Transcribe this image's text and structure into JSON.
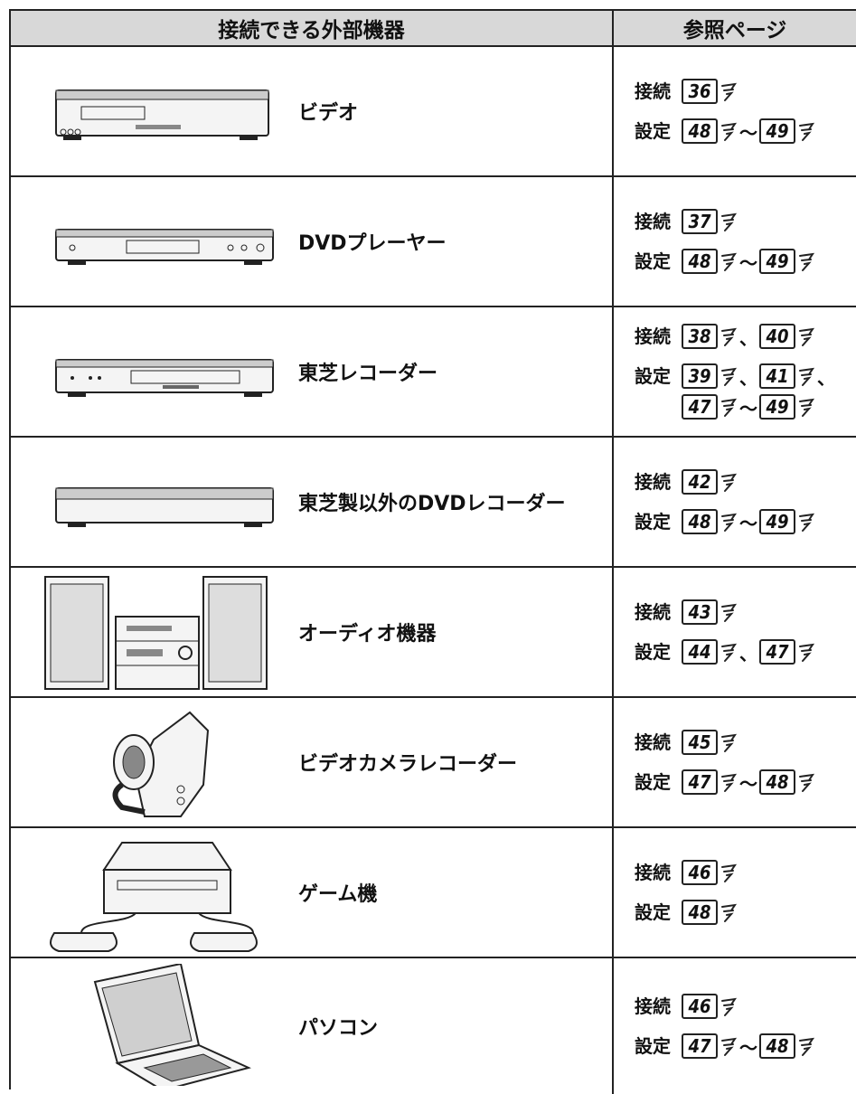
{
  "header": {
    "device": "接続できる外部機器",
    "reference": "参照ページ"
  },
  "rows": [
    {
      "name": "ビデオ",
      "refs": [
        {
          "label": "接続",
          "lines": [
            [
              "36"
            ]
          ]
        },
        {
          "label": "設定",
          "lines": [
            [
              "48",
              "～",
              "49"
            ]
          ]
        }
      ]
    },
    {
      "name": "DVDプレーヤー",
      "refs": [
        {
          "label": "接続",
          "lines": [
            [
              "37"
            ]
          ]
        },
        {
          "label": "設定",
          "lines": [
            [
              "48",
              "～",
              "49"
            ]
          ]
        }
      ]
    },
    {
      "name": "東芝レコーダー",
      "refs": [
        {
          "label": "接続",
          "lines": [
            [
              "38",
              "、",
              "40"
            ]
          ]
        },
        {
          "label": "設定",
          "lines": [
            [
              "39",
              "、",
              "41",
              "、"
            ],
            [
              "47",
              "～",
              "49"
            ]
          ]
        }
      ]
    },
    {
      "name": "東芝製以外のDVDレコーダー",
      "refs": [
        {
          "label": "接続",
          "lines": [
            [
              "42"
            ]
          ]
        },
        {
          "label": "設定",
          "lines": [
            [
              "48",
              "～",
              "49"
            ]
          ]
        }
      ]
    },
    {
      "name": "オーディオ機器",
      "refs": [
        {
          "label": "接続",
          "lines": [
            [
              "43"
            ]
          ]
        },
        {
          "label": "設定",
          "lines": [
            [
              "44",
              "、",
              "47"
            ]
          ]
        }
      ]
    },
    {
      "name": "ビデオカメラレコーダー",
      "refs": [
        {
          "label": "接続",
          "lines": [
            [
              "45"
            ]
          ]
        },
        {
          "label": "設定",
          "lines": [
            [
              "47",
              "～",
              "48"
            ]
          ]
        }
      ]
    },
    {
      "name": "ゲーム機",
      "refs": [
        {
          "label": "接続",
          "lines": [
            [
              "46"
            ]
          ]
        },
        {
          "label": "設定",
          "lines": [
            [
              "48"
            ]
          ]
        }
      ]
    },
    {
      "name": "パソコン",
      "refs": [
        {
          "label": "接続",
          "lines": [
            [
              "46"
            ]
          ]
        },
        {
          "label": "設定",
          "lines": [
            [
              "47",
              "～",
              "48"
            ]
          ]
        }
      ]
    }
  ]
}
